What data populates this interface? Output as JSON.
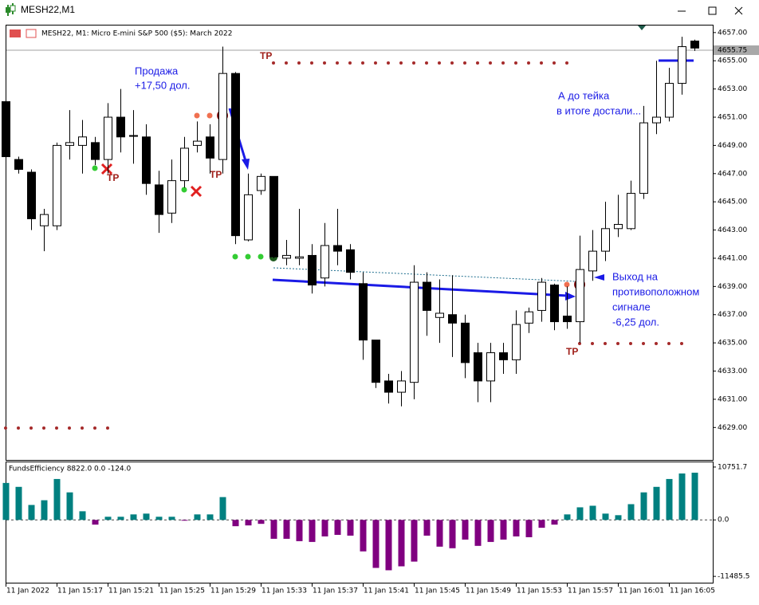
{
  "window": {
    "title": "MESH22,M1"
  },
  "chart_data": [
    {
      "type": "candlestick",
      "title": "MESH22, M1:  Micro E-mini S&P 500 ($5): March 2022",
      "categories": [
        "11 Jan 2022",
        null,
        null,
        null,
        "11 Jan 15:17",
        null,
        null,
        null,
        "11 Jan 15:21",
        null,
        null,
        null,
        "11 Jan 15:25",
        null,
        null,
        null,
        "11 Jan 15:29",
        null,
        null,
        null,
        "11 Jan 15:33",
        null,
        null,
        null,
        "11 Jan 15:37",
        null,
        null,
        null,
        "11 Jan 15:41",
        null,
        null,
        null,
        "11 Jan 15:45",
        null,
        null,
        null,
        "11 Jan 15:49",
        null,
        null,
        null,
        "11 Jan 15:53",
        null,
        null,
        null,
        "11 Jan 15:57",
        null,
        null,
        null,
        "11 Jan 16:01",
        null,
        null,
        null,
        "11 Jan 16:05",
        null,
        null
      ],
      "open": [
        4652.1,
        4648.0,
        4647.1,
        4643.3,
        4643.3,
        4649.0,
        4649.0,
        4649.2,
        4648.0,
        4651.0,
        4649.7,
        4649.6,
        4646.2,
        4644.2,
        4646.5,
        4649.0,
        4649.6,
        4648.0,
        4654.1,
        4642.3,
        4645.8,
        4646.8,
        4641.0,
        4641.0,
        4641.2,
        4639.6,
        4641.9,
        4641.6,
        4639.2,
        4635.2,
        4632.3,
        4631.5,
        4632.2,
        4639.3,
        4636.8,
        4637.0,
        4636.4,
        4634.3,
        4632.3,
        4634.3,
        4633.8,
        4636.4,
        4637.3,
        4639.1,
        4636.9,
        4636.5,
        4640.1,
        4641.5,
        4643.1,
        4643.1,
        4645.6,
        4650.6,
        4651.0,
        4653.4,
        4656.4
      ],
      "high": [
        4652.3,
        4648.2,
        4647.3,
        4644.5,
        4649.2,
        4651.5,
        4650.8,
        4649.6,
        4652.0,
        4653.0,
        4651.5,
        4650.5,
        4647.2,
        4648.0,
        4649.6,
        4650.7,
        4650.5,
        4656.0,
        4654.2,
        4647.0,
        4647.0,
        4646.8,
        4642.3,
        4644.5,
        4642.0,
        4643.5,
        4644.5,
        4642.0,
        4640.0,
        4635.2,
        4632.8,
        4633.0,
        4640.5,
        4640.0,
        4639.5,
        4639.8,
        4637.0,
        4635.0,
        4635.0,
        4635.0,
        4637.3,
        4637.5,
        4639.6,
        4639.2,
        4639.0,
        4642.6,
        4643.0,
        4645.0,
        4645.5,
        4646.5,
        4651.8,
        4655.0,
        4654.5,
        4656.7,
        4656.5
      ],
      "low": [
        4647.8,
        4647.0,
        4643.0,
        4641.5,
        4643.0,
        4648.0,
        4647.0,
        4647.6,
        4647.0,
        4648.5,
        4647.7,
        4645.5,
        4642.8,
        4643.5,
        4646.0,
        4648.5,
        4647.0,
        4647.0,
        4642.0,
        4642.2,
        4645.5,
        4641.0,
        4640.5,
        4640.5,
        4638.5,
        4639.0,
        4640.5,
        4639.5,
        4633.8,
        4631.8,
        4630.7,
        4630.5,
        4631.0,
        4635.5,
        4635.0,
        4634.0,
        4632.5,
        4630.8,
        4630.8,
        4632.8,
        4632.8,
        4635.7,
        4636.5,
        4635.9,
        4636.0,
        4635.0,
        4639.4,
        4640.8,
        4642.5,
        4643.0,
        4645.2,
        4649.8,
        4650.7,
        4652.6,
        4655.7
      ],
      "close": [
        4648.2,
        4647.3,
        4643.8,
        4644.1,
        4649.0,
        4649.2,
        4649.6,
        4648.0,
        4651.0,
        4649.6,
        4649.7,
        4646.3,
        4644.1,
        4646.5,
        4648.8,
        4649.3,
        4648.1,
        4654.1,
        4642.6,
        4645.5,
        4646.8,
        4641.1,
        4641.2,
        4641.1,
        4639.1,
        4641.9,
        4641.5,
        4640.0,
        4635.2,
        4632.2,
        4631.5,
        4632.3,
        4639.3,
        4637.3,
        4637.1,
        4636.4,
        4633.6,
        4632.3,
        4634.3,
        4633.8,
        4636.3,
        4637.2,
        4639.3,
        4636.5,
        4636.5,
        4640.2,
        4641.5,
        4643.1,
        4643.4,
        4645.6,
        4650.6,
        4651.0,
        4653.4,
        4656.0,
        4655.9
      ],
      "up_color": "#ffffff",
      "down_color": "#000000",
      "current_price": 4655.75,
      "ylim": [
        4626.7,
        4657.5
      ],
      "yticks": [
        {
          "value": 4629,
          "label": "4629.00"
        },
        {
          "value": 4631,
          "label": "4631.00"
        },
        {
          "value": 4633,
          "label": "4633.00"
        },
        {
          "value": 4635,
          "label": "4635.00"
        },
        {
          "value": 4637,
          "label": "4637.00"
        },
        {
          "value": 4639,
          "label": "4639.00"
        },
        {
          "value": 4641,
          "label": "4641.00"
        },
        {
          "value": 4643,
          "label": "4643.00"
        },
        {
          "value": 4645,
          "label": "4645.00"
        },
        {
          "value": 4647,
          "label": "4647.00"
        },
        {
          "value": 4649,
          "label": "4649.00"
        },
        {
          "value": 4651,
          "label": "4651.00"
        },
        {
          "value": 4653,
          "label": "4653.00"
        },
        {
          "value": 4655,
          "label": "4655.00"
        },
        {
          "value": 4657,
          "label": "4657.00"
        }
      ],
      "annotations": [
        "Продажа",
        "+17,50 дол.",
        "А до тейка",
        "в итоге достали...",
        "Выход на",
        "противоположном",
        "сигнале",
        "-6,25 дол.",
        "TP",
        "TP",
        "TP",
        "TP"
      ]
    },
    {
      "type": "bar",
      "title": "FundsEfficiency 8822.0 0.0 -124.0",
      "values": [
        7520,
        6720,
        3040,
        4000,
        8320,
        5600,
        1760,
        -960,
        640,
        640,
        1120,
        1280,
        640,
        640,
        -160,
        1120,
        1120,
        4640,
        -1280,
        -1120,
        -800,
        -3840,
        -3840,
        -4320,
        -4480,
        -3360,
        -3040,
        -3200,
        -6400,
        -9760,
        -10240,
        -9440,
        -8480,
        -3200,
        -5440,
        -5760,
        -4000,
        -5280,
        -4480,
        -4000,
        -3360,
        -3520,
        -1600,
        -960,
        1120,
        2560,
        2880,
        1280,
        960,
        3200,
        5600,
        6720,
        8320,
        9440,
        9600
      ],
      "positive_color": "#008080",
      "negative_color": "#800080",
      "ylim": [
        -12765,
        11711
      ],
      "yticks": [
        -11485.5,
        {
          "value": 0,
          "label": "0.0"
        },
        10751.7
      ]
    }
  ]
}
